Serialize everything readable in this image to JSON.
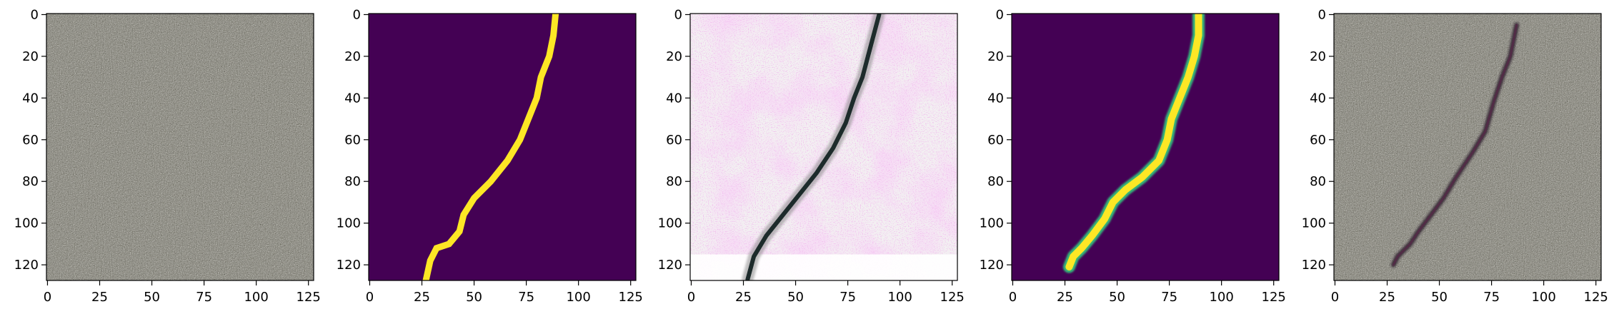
{
  "colors": {
    "viridis_dark": "#440154",
    "viridis_yellow": "#fde725",
    "viridis_green": "#35b779",
    "gray_texture_base": "#7a7870",
    "pink_texture": "#e9c6e6"
  },
  "chart_data": [
    {
      "type": "heatmap",
      "content": "grayscale concrete surface texture image",
      "image_size": [
        128,
        128
      ],
      "xlim": [
        0,
        127
      ],
      "ylim": [
        127,
        0
      ],
      "xticks": [
        0,
        25,
        50,
        75,
        100,
        125
      ],
      "yticks": [
        0,
        20,
        40,
        60,
        80,
        100,
        120
      ],
      "xtick_labels": [
        "0",
        "25",
        "50",
        "75",
        "100",
        "125"
      ],
      "ytick_labels": [
        "0",
        "20",
        "40",
        "60",
        "80",
        "100",
        "120"
      ]
    },
    {
      "type": "heatmap",
      "content": "binary crack mask (yellow crack on dark purple background)",
      "image_size": [
        128,
        128
      ],
      "xlim": [
        0,
        127
      ],
      "ylim": [
        127,
        0
      ],
      "xticks": [
        0,
        25,
        50,
        75,
        100,
        125
      ],
      "yticks": [
        0,
        20,
        40,
        60,
        80,
        100,
        120
      ],
      "xtick_labels": [
        "0",
        "25",
        "50",
        "75",
        "100",
        "125"
      ],
      "ytick_labels": [
        "0",
        "20",
        "40",
        "60",
        "80",
        "100",
        "120"
      ],
      "crack_path": [
        [
          89,
          0
        ],
        [
          88,
          10
        ],
        [
          86,
          20
        ],
        [
          82,
          30
        ],
        [
          80,
          40
        ],
        [
          76,
          50
        ],
        [
          72,
          60
        ],
        [
          66,
          70
        ],
        [
          58,
          80
        ],
        [
          50,
          88
        ],
        [
          45,
          96
        ],
        [
          43,
          104
        ],
        [
          38,
          110
        ],
        [
          32,
          112
        ],
        [
          29,
          118
        ],
        [
          27,
          127
        ]
      ]
    },
    {
      "type": "heatmap",
      "content": "generated crack image with pink/white artifact texture",
      "image_size": [
        128,
        128
      ],
      "xlim": [
        0,
        127
      ],
      "ylim": [
        127,
        0
      ],
      "xticks": [
        0,
        25,
        50,
        75,
        100,
        125
      ],
      "yticks": [
        0,
        20,
        40,
        60,
        80,
        100,
        120
      ],
      "xtick_labels": [
        "0",
        "25",
        "50",
        "75",
        "100",
        "125"
      ],
      "ytick_labels": [
        "0",
        "20",
        "40",
        "60",
        "80",
        "100",
        "120"
      ],
      "crack_path": [
        [
          90,
          0
        ],
        [
          86,
          15
        ],
        [
          82,
          30
        ],
        [
          78,
          40
        ],
        [
          74,
          52
        ],
        [
          68,
          64
        ],
        [
          60,
          76
        ],
        [
          52,
          86
        ],
        [
          44,
          96
        ],
        [
          36,
          106
        ],
        [
          30,
          116
        ],
        [
          27,
          127
        ]
      ]
    },
    {
      "type": "heatmap",
      "content": "predicted crack probability map (viridis)",
      "image_size": [
        128,
        128
      ],
      "xlim": [
        0,
        127
      ],
      "ylim": [
        127,
        0
      ],
      "xticks": [
        0,
        25,
        50,
        75,
        100,
        125
      ],
      "yticks": [
        0,
        20,
        40,
        60,
        80,
        100,
        120
      ],
      "xtick_labels": [
        "0",
        "25",
        "50",
        "75",
        "100",
        "125"
      ],
      "ytick_labels": [
        "0",
        "20",
        "40",
        "60",
        "80",
        "100",
        "120"
      ],
      "crack_path": [
        [
          89,
          0
        ],
        [
          89,
          10
        ],
        [
          87,
          20
        ],
        [
          84,
          30
        ],
        [
          80,
          40
        ],
        [
          76,
          50
        ],
        [
          74,
          60
        ],
        [
          70,
          70
        ],
        [
          62,
          78
        ],
        [
          54,
          84
        ],
        [
          48,
          90
        ],
        [
          44,
          98
        ],
        [
          38,
          106
        ],
        [
          33,
          112
        ],
        [
          29,
          116
        ],
        [
          27,
          121
        ]
      ]
    },
    {
      "type": "heatmap",
      "content": "grayscale concrete texture with overlaid dark crack",
      "image_size": [
        128,
        128
      ],
      "xlim": [
        0,
        127
      ],
      "ylim": [
        127,
        0
      ],
      "xticks": [
        0,
        25,
        50,
        75,
        100,
        125
      ],
      "yticks": [
        0,
        20,
        40,
        60,
        80,
        100,
        120
      ],
      "xtick_labels": [
        "0",
        "25",
        "50",
        "75",
        "100",
        "125"
      ],
      "ytick_labels": [
        "0",
        "20",
        "40",
        "60",
        "80",
        "100",
        "120"
      ],
      "crack_path": [
        [
          87,
          5
        ],
        [
          84,
          20
        ],
        [
          80,
          30
        ],
        [
          76,
          42
        ],
        [
          72,
          56
        ],
        [
          66,
          66
        ],
        [
          58,
          78
        ],
        [
          52,
          88
        ],
        [
          46,
          96
        ],
        [
          40,
          104
        ],
        [
          36,
          110
        ],
        [
          30,
          116
        ],
        [
          28,
          120
        ]
      ]
    }
  ]
}
